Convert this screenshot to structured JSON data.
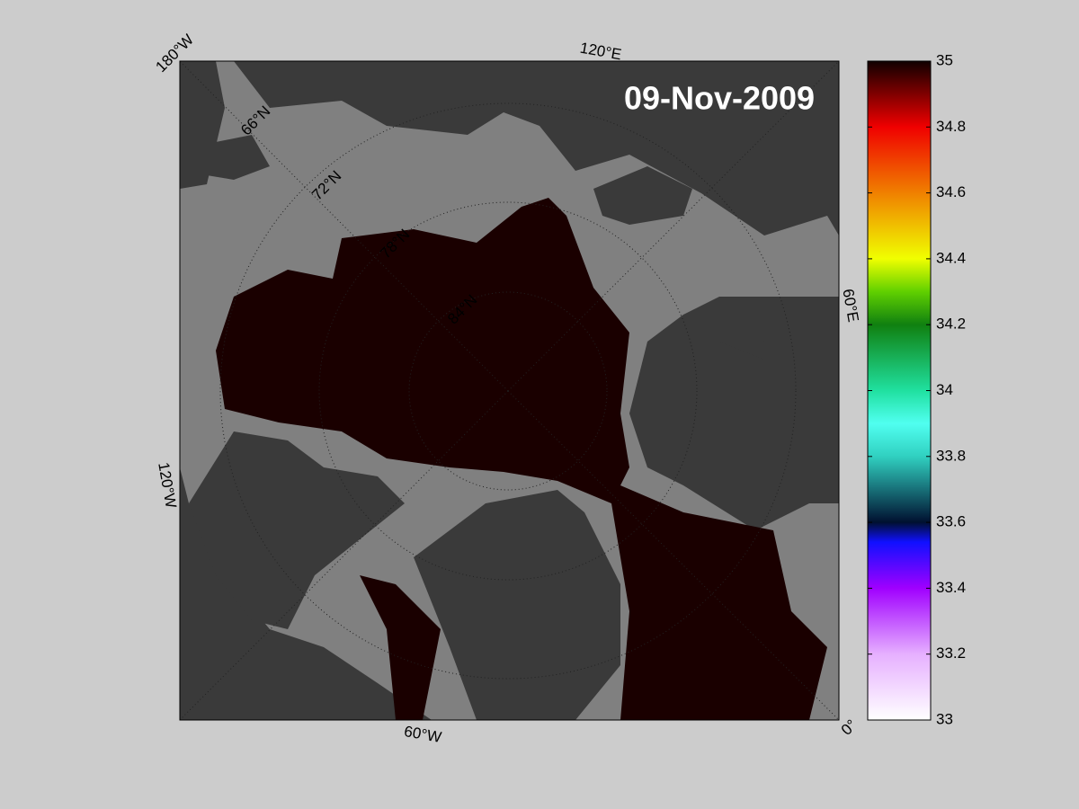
{
  "map": {
    "date_label": "09-Nov-2009",
    "longitude_labels": [
      "180°W",
      "120°E",
      "60°E",
      "0°",
      "60°W",
      "120°W"
    ],
    "latitude_labels": [
      "66°N",
      "72°N",
      "78°N",
      "84°N"
    ]
  },
  "colorbar": {
    "range": [
      33,
      35
    ],
    "ticks": [
      33,
      33.2,
      33.4,
      33.6,
      33.8,
      34,
      34.2,
      34.4,
      34.6,
      34.8,
      35
    ]
  }
}
